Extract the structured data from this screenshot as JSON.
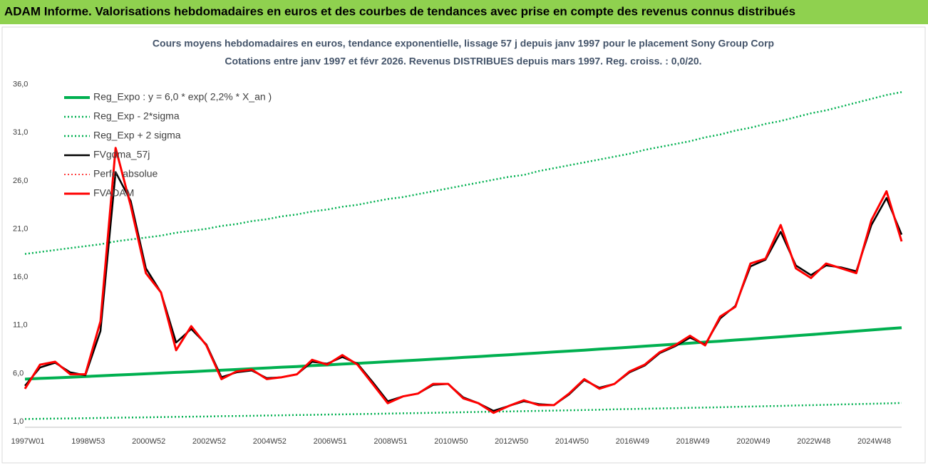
{
  "chart_data": {
    "type": "line",
    "header": "ADAM Informe. Valorisations hebdomadaires en euros et des courbes de tendances avec prise en compte des revenus connus distribués",
    "title": "Cours moyens hebdomadaires en euros, tendance exponentielle, lissage 57 j depuis janv 1997 pour le placement Sony Group Corp",
    "subtitle": "Cotations entre janv 1997 et févr 2026. Revenus DISTRIBUES depuis mars 1997. Reg. croiss. : 0,0/20.",
    "categories": [
      "1997W01",
      null,
      null,
      null,
      "1998W53",
      null,
      null,
      null,
      "2000W52",
      null,
      null,
      null,
      "2002W52",
      null,
      null,
      null,
      "2004W52",
      null,
      null,
      null,
      "2006W51",
      null,
      null,
      null,
      "2008W51",
      null,
      null,
      null,
      "2010W50",
      null,
      null,
      null,
      "2012W50",
      null,
      null,
      null,
      "2014W50",
      null,
      null,
      null,
      "2016W49",
      null,
      null,
      null,
      "2018W49",
      null,
      null,
      null,
      "2020W49",
      null,
      null,
      null,
      "2022W48",
      null,
      null,
      null,
      "2024W48",
      null,
      null
    ],
    "ylim": [
      1,
      37.6
    ],
    "yticks": [
      {
        "value": 1,
        "label": "1,0"
      },
      {
        "value": 6,
        "label": "6,0"
      },
      {
        "value": 11,
        "label": "11,0"
      },
      {
        "value": 16,
        "label": "16,0"
      },
      {
        "value": 21,
        "label": "21,0"
      },
      {
        "value": 26,
        "label": "26,0"
      },
      {
        "value": 31,
        "label": "31,0"
      },
      {
        "value": 36,
        "label": "36,0"
      }
    ],
    "grid": false,
    "legend": "upper left",
    "series": [
      {
        "name": "Reg_Expo : y = 6,0 * exp( 2,2% *  X_an )",
        "color": "#00b050",
        "line_style": "solid",
        "linewidth": 4,
        "values": [
          6.0,
          6.07,
          6.13,
          6.2,
          6.27,
          6.34,
          6.41,
          6.48,
          6.55,
          6.63,
          6.7,
          6.77,
          6.85,
          6.92,
          7.0,
          7.08,
          7.15,
          7.24,
          7.31,
          7.4,
          7.47,
          7.56,
          7.64,
          7.72,
          7.81,
          7.89,
          7.98,
          8.07,
          8.16,
          8.25,
          8.34,
          8.44,
          8.53,
          8.62,
          8.72,
          8.82,
          8.91,
          9.01,
          9.11,
          9.21,
          9.31,
          9.42,
          9.52,
          9.62,
          9.73,
          9.84,
          9.94,
          10.06,
          10.16,
          10.28,
          10.39,
          10.51,
          10.62,
          10.74,
          10.86,
          10.98,
          11.1,
          11.22,
          11.34
        ]
      },
      {
        "name": "Reg_Exp - 2*sigma",
        "color": "#00b050",
        "line_style": "dotted",
        "linewidth": 2.5,
        "values": [
          1.86,
          1.88,
          1.9,
          1.92,
          1.94,
          1.97,
          1.99,
          2.01,
          2.03,
          2.06,
          2.08,
          2.1,
          2.12,
          2.15,
          2.17,
          2.19,
          2.22,
          2.24,
          2.27,
          2.29,
          2.32,
          2.34,
          2.37,
          2.39,
          2.42,
          2.45,
          2.47,
          2.5,
          2.53,
          2.56,
          2.59,
          2.62,
          2.64,
          2.67,
          2.7,
          2.73,
          2.76,
          2.79,
          2.82,
          2.86,
          2.89,
          2.92,
          2.95,
          2.98,
          3.02,
          3.05,
          3.08,
          3.12,
          3.15,
          3.19,
          3.22,
          3.26,
          3.29,
          3.33,
          3.37,
          3.4,
          3.44,
          3.48,
          3.52
        ]
      },
      {
        "name": "Reg_Exp + 2 sigma",
        "color": "#00b050",
        "line_style": "dotted",
        "linewidth": 2.5,
        "values": [
          19.0,
          19.2,
          19.4,
          19.6,
          19.8,
          20.0,
          20.3,
          20.5,
          20.7,
          20.9,
          21.2,
          21.4,
          21.6,
          21.9,
          22.1,
          22.4,
          22.6,
          22.9,
          23.1,
          23.4,
          23.6,
          23.9,
          24.1,
          24.4,
          24.7,
          24.9,
          25.2,
          25.5,
          25.8,
          26.1,
          26.4,
          26.7,
          27.0,
          27.2,
          27.6,
          27.9,
          28.2,
          28.5,
          28.8,
          29.1,
          29.4,
          29.8,
          30.1,
          30.4,
          30.7,
          31.1,
          31.4,
          31.8,
          32.1,
          32.5,
          32.8,
          33.2,
          33.6,
          33.9,
          34.3,
          34.7,
          35.1,
          35.5,
          35.8
        ]
      },
      {
        "name": "FVgdma_57j",
        "color": "#000000",
        "line_style": "solid",
        "linewidth": 2.5,
        "values": [
          5.3,
          7.2,
          7.7,
          6.7,
          6.4,
          11.0,
          27.5,
          24.5,
          17.5,
          15.0,
          9.8,
          11.2,
          9.6,
          6.2,
          6.7,
          6.9,
          6.1,
          6.2,
          6.5,
          7.8,
          7.6,
          8.3,
          7.6,
          5.7,
          3.7,
          4.2,
          4.5,
          5.4,
          5.5,
          4.1,
          3.5,
          2.7,
          3.2,
          3.7,
          3.4,
          3.3,
          4.4,
          5.9,
          5.1,
          5.5,
          6.7,
          7.4,
          8.7,
          9.4,
          10.3,
          9.6,
          12.3,
          13.6,
          17.7,
          18.4,
          21.3,
          17.8,
          16.8,
          17.8,
          17.6,
          17.2,
          22.0,
          24.8,
          21.0
        ]
      },
      {
        "name": "Perfo. absolue",
        "color": "#ff0000",
        "line_style": "dotted",
        "linewidth": 1.5,
        "values": [
          5.0,
          7.5,
          7.8,
          6.5,
          6.5,
          12.0,
          30.0,
          24.0,
          17.0,
          15.0,
          9.0,
          11.5,
          9.5,
          6.0,
          6.8,
          7.0,
          6.0,
          6.2,
          6.5,
          8.0,
          7.5,
          8.5,
          7.5,
          5.5,
          3.5,
          4.2,
          4.5,
          5.5,
          5.5,
          4.0,
          3.5,
          2.5,
          3.2,
          3.8,
          3.3,
          3.3,
          4.5,
          6.0,
          5.0,
          5.5,
          6.8,
          7.5,
          8.8,
          9.5,
          10.5,
          9.5,
          12.5,
          13.5,
          18.0,
          18.5,
          22.0,
          17.5,
          16.5,
          18.0,
          17.5,
          17.0,
          22.5,
          25.5,
          20.3
        ]
      },
      {
        "name": "FVADAM",
        "color": "#ff0000",
        "line_style": "solid",
        "linewidth": 3,
        "values": [
          5.0,
          7.5,
          7.8,
          6.5,
          6.5,
          12.0,
          30.0,
          24.0,
          17.0,
          15.0,
          9.0,
          11.5,
          9.5,
          6.0,
          6.8,
          7.0,
          6.0,
          6.2,
          6.5,
          8.0,
          7.5,
          8.5,
          7.5,
          5.5,
          3.5,
          4.2,
          4.5,
          5.5,
          5.5,
          4.0,
          3.5,
          2.5,
          3.2,
          3.8,
          3.3,
          3.3,
          4.5,
          6.0,
          5.0,
          5.5,
          6.8,
          7.5,
          8.8,
          9.5,
          10.5,
          9.5,
          12.5,
          13.5,
          18.0,
          18.5,
          22.0,
          17.5,
          16.5,
          18.0,
          17.5,
          17.0,
          22.5,
          25.5,
          20.3
        ]
      }
    ]
  }
}
